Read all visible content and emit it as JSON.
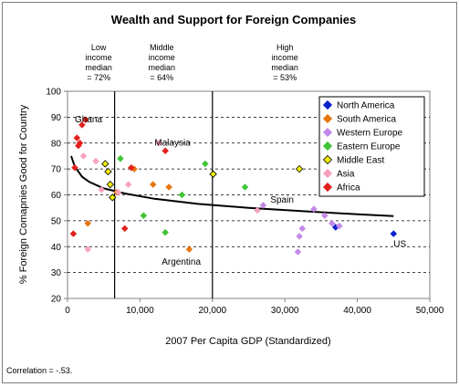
{
  "chart_data": {
    "type": "scatter",
    "title": "Wealth and Support for Foreign Companies",
    "xlabel": "2007 Per Capita GDP (Standardized)",
    "ylabel": "% Foreign Comapnies Good for Country",
    "xlim": [
      0,
      50000
    ],
    "ylim": [
      20,
      100
    ],
    "xticks": [
      0,
      10000,
      20000,
      30000,
      40000,
      50000
    ],
    "xtick_labels": [
      "0",
      "10,000",
      "20,000",
      "30,000",
      "40,000",
      "50,000"
    ],
    "yticks": [
      20,
      30,
      40,
      50,
      60,
      70,
      80,
      90,
      100
    ],
    "grid": "horizontal dashed",
    "legend_position": "top-right",
    "footnote": "Correlation = -.53.",
    "vlines": [
      {
        "x": 6500,
        "label_lines": [
          "Low",
          "income",
          "median",
          "= 72%"
        ]
      },
      {
        "x": 20000,
        "label_lines": [
          "Middle",
          "income",
          "median",
          "= 64%"
        ]
      }
    ],
    "extra_label": {
      "x": 30000,
      "label_lines": [
        "High",
        "income",
        "median",
        "= 53%"
      ]
    },
    "annotations": [
      {
        "text": "Ghana",
        "x": 1000,
        "y": 88
      },
      {
        "text": "Malaysia",
        "x": 12000,
        "y": 79
      },
      {
        "text": "Argentina",
        "x": 13000,
        "y": 33
      },
      {
        "text": "Spain",
        "x": 28000,
        "y": 57
      },
      {
        "text": "US",
        "x": 45000,
        "y": 40
      }
    ],
    "series": [
      {
        "name": "North America",
        "color": "#0a1fcc",
        "points": [
          [
            37000,
            47.5
          ],
          [
            45000,
            45
          ]
        ]
      },
      {
        "name": "South America",
        "color": "#e8760f",
        "points": [
          [
            2800,
            49
          ],
          [
            6800,
            61
          ],
          [
            9200,
            70
          ],
          [
            11800,
            64
          ],
          [
            14000,
            63
          ],
          [
            16800,
            39
          ]
        ]
      },
      {
        "name": "Western Europe",
        "color": "#c389e8",
        "points": [
          [
            27000,
            56
          ],
          [
            31800,
            38
          ],
          [
            32000,
            44
          ],
          [
            32400,
            47
          ],
          [
            34000,
            54.5
          ],
          [
            35500,
            52
          ],
          [
            36500,
            49
          ],
          [
            37500,
            48
          ]
        ]
      },
      {
        "name": "Eastern Europe",
        "color": "#3fc436",
        "points": [
          [
            7300,
            74
          ],
          [
            10500,
            52
          ],
          [
            13500,
            45.5
          ],
          [
            15800,
            60
          ],
          [
            19000,
            72
          ],
          [
            24500,
            63
          ]
        ]
      },
      {
        "name": "Middle East",
        "color": "#f5f200",
        "points": [
          [
            5200,
            72
          ],
          [
            5600,
            69
          ],
          [
            5900,
            64
          ],
          [
            6200,
            59
          ],
          [
            20100,
            68
          ],
          [
            32000,
            70
          ]
        ]
      },
      {
        "name": "Asia",
        "color": "#f7a1c0",
        "points": [
          [
            2200,
            75
          ],
          [
            2800,
            39
          ],
          [
            3900,
            73
          ],
          [
            4700,
            62
          ],
          [
            7000,
            61
          ],
          [
            8400,
            64
          ],
          [
            12600,
            80
          ],
          [
            26200,
            54
          ]
        ]
      },
      {
        "name": "Africa",
        "color": "#e3211c",
        "points": [
          [
            800,
            45
          ],
          [
            1000,
            70.5
          ],
          [
            1300,
            82
          ],
          [
            1500,
            79
          ],
          [
            1700,
            80
          ],
          [
            2000,
            87
          ],
          [
            2500,
            89
          ],
          [
            7900,
            47
          ],
          [
            8800,
            70.5
          ],
          [
            13500,
            77
          ]
        ]
      }
    ],
    "trendline": {
      "type": "logarithmic",
      "points": [
        [
          500,
          75
        ],
        [
          1000,
          71
        ],
        [
          2000,
          67
        ],
        [
          3000,
          65
        ],
        [
          5000,
          62.5
        ],
        [
          8000,
          60.5
        ],
        [
          12000,
          58.5
        ],
        [
          18000,
          56.5
        ],
        [
          25000,
          55
        ],
        [
          32000,
          53.8
        ],
        [
          40000,
          52.5
        ],
        [
          45000,
          51.8
        ]
      ]
    }
  }
}
